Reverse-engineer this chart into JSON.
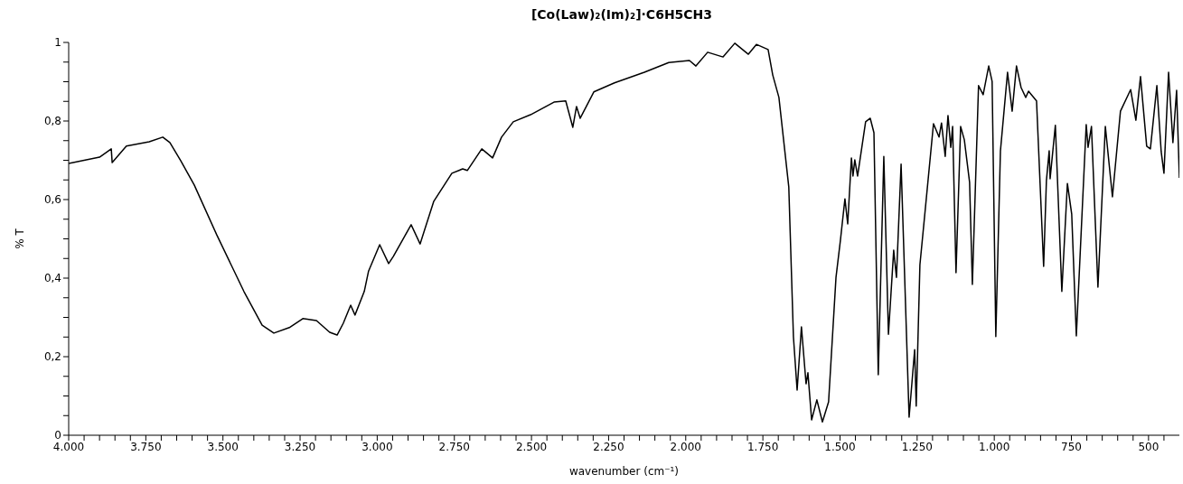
{
  "chart_data": {
    "type": "line",
    "title": "[Co(Law)₂(Im)₂]·C6H5CH3",
    "xlabel": "wavenumber (cm⁻¹)",
    "ylabel": "% T",
    "x": [
      4000,
      3900,
      3862,
      3859,
      3813,
      3739,
      3695,
      3672,
      3637,
      3593,
      3520,
      3432,
      3373,
      3335,
      3285,
      3241,
      3197,
      3154,
      3130,
      3110,
      3086,
      3072,
      3042,
      3028,
      2992,
      2963,
      2948,
      2890,
      2861,
      2817,
      2758,
      2723,
      2708,
      2661,
      2626,
      2597,
      2559,
      2503,
      2427,
      2389,
      2366,
      2354,
      2342,
      2298,
      2231,
      2134,
      2055,
      1988,
      1967,
      1929,
      1879,
      1841,
      1797,
      1771,
      1733,
      1718,
      1698,
      1666,
      1651,
      1639,
      1625,
      1610,
      1604,
      1592,
      1575,
      1557,
      1537,
      1513,
      1499,
      1484,
      1475,
      1463,
      1458,
      1452,
      1443,
      1417,
      1402,
      1390,
      1376,
      1358,
      1343,
      1326,
      1317,
      1302,
      1276,
      1258,
      1253,
      1241,
      1224,
      1197,
      1179,
      1171,
      1159,
      1150,
      1141,
      1135,
      1124,
      1109,
      1097,
      1080,
      1071,
      1051,
      1036,
      1018,
      1007,
      995,
      980,
      957,
      942,
      928,
      913,
      898,
      889,
      863,
      840,
      831,
      822,
      819,
      802,
      781,
      763,
      749,
      734,
      702,
      696,
      685,
      664,
      640,
      617,
      591,
      558,
      541,
      526,
      506,
      494,
      473,
      459,
      450,
      435,
      421,
      409,
      400
    ],
    "series": [
      {
        "color": "#000000",
        "values": [
          0.692,
          0.708,
          0.729,
          0.694,
          0.736,
          0.747,
          0.759,
          0.745,
          0.699,
          0.637,
          0.51,
          0.366,
          0.28,
          0.26,
          0.274,
          0.297,
          0.292,
          0.262,
          0.255,
          0.285,
          0.331,
          0.306,
          0.366,
          0.418,
          0.485,
          0.437,
          0.455,
          0.536,
          0.487,
          0.595,
          0.667,
          0.678,
          0.674,
          0.729,
          0.706,
          0.759,
          0.798,
          0.816,
          0.848,
          0.851,
          0.784,
          0.837,
          0.807,
          0.874,
          0.897,
          0.924,
          0.949,
          0.954,
          0.94,
          0.975,
          0.963,
          0.998,
          0.97,
          0.995,
          0.982,
          0.917,
          0.86,
          0.632,
          0.251,
          0.115,
          0.276,
          0.131,
          0.159,
          0.039,
          0.09,
          0.034,
          0.085,
          0.402,
          0.494,
          0.602,
          0.538,
          0.706,
          0.66,
          0.701,
          0.66,
          0.798,
          0.807,
          0.77,
          0.154,
          0.71,
          0.257,
          0.471,
          0.402,
          0.69,
          0.046,
          0.218,
          0.074,
          0.434,
          0.572,
          0.793,
          0.759,
          0.795,
          0.71,
          0.814,
          0.733,
          0.786,
          0.414,
          0.786,
          0.752,
          0.644,
          0.384,
          0.89,
          0.867,
          0.94,
          0.901,
          0.251,
          0.724,
          0.924,
          0.825,
          0.94,
          0.885,
          0.86,
          0.876,
          0.851,
          0.43,
          0.648,
          0.724,
          0.653,
          0.789,
          0.366,
          0.641,
          0.563,
          0.253,
          0.791,
          0.733,
          0.786,
          0.377,
          0.786,
          0.607,
          0.825,
          0.88,
          0.802,
          0.913,
          0.736,
          0.729,
          0.89,
          0.722,
          0.667,
          0.924,
          0.745,
          0.878,
          0.655
        ]
      }
    ],
    "xlim": [
      4000,
      400
    ],
    "xticks": [
      {
        "value": 4000,
        "label": "4.000"
      },
      {
        "value": 3950,
        "label": null
      },
      {
        "value": 3900,
        "label": null
      },
      {
        "value": 3850,
        "label": null
      },
      {
        "value": 3800,
        "label": null
      },
      {
        "value": 3750,
        "label": "3.750"
      },
      {
        "value": 3700,
        "label": null
      },
      {
        "value": 3650,
        "label": null
      },
      {
        "value": 3600,
        "label": null
      },
      {
        "value": 3550,
        "label": null
      },
      {
        "value": 3500,
        "label": "3.500"
      },
      {
        "value": 3450,
        "label": null
      },
      {
        "value": 3400,
        "label": null
      },
      {
        "value": 3350,
        "label": null
      },
      {
        "value": 3300,
        "label": null
      },
      {
        "value": 3250,
        "label": "3.250"
      },
      {
        "value": 3200,
        "label": null
      },
      {
        "value": 3150,
        "label": null
      },
      {
        "value": 3100,
        "label": null
      },
      {
        "value": 3050,
        "label": null
      },
      {
        "value": 3000,
        "label": "3.000"
      },
      {
        "value": 2950,
        "label": null
      },
      {
        "value": 2900,
        "label": null
      },
      {
        "value": 2850,
        "label": null
      },
      {
        "value": 2800,
        "label": null
      },
      {
        "value": 2750,
        "label": "2.750"
      },
      {
        "value": 2700,
        "label": null
      },
      {
        "value": 2650,
        "label": null
      },
      {
        "value": 2600,
        "label": null
      },
      {
        "value": 2550,
        "label": null
      },
      {
        "value": 2500,
        "label": "2.500"
      },
      {
        "value": 2450,
        "label": null
      },
      {
        "value": 2400,
        "label": null
      },
      {
        "value": 2350,
        "label": null
      },
      {
        "value": 2300,
        "label": null
      },
      {
        "value": 2250,
        "label": "2.250"
      },
      {
        "value": 2200,
        "label": null
      },
      {
        "value": 2150,
        "label": null
      },
      {
        "value": 2100,
        "label": null
      },
      {
        "value": 2050,
        "label": null
      },
      {
        "value": 2000,
        "label": "2.000"
      },
      {
        "value": 1950,
        "label": null
      },
      {
        "value": 1900,
        "label": null
      },
      {
        "value": 1850,
        "label": null
      },
      {
        "value": 1800,
        "label": null
      },
      {
        "value": 1750,
        "label": "1.750"
      },
      {
        "value": 1700,
        "label": null
      },
      {
        "value": 1650,
        "label": null
      },
      {
        "value": 1600,
        "label": null
      },
      {
        "value": 1550,
        "label": null
      },
      {
        "value": 1500,
        "label": "1.500"
      },
      {
        "value": 1450,
        "label": null
      },
      {
        "value": 1400,
        "label": null
      },
      {
        "value": 1350,
        "label": null
      },
      {
        "value": 1300,
        "label": null
      },
      {
        "value": 1250,
        "label": "1.250"
      },
      {
        "value": 1200,
        "label": null
      },
      {
        "value": 1150,
        "label": null
      },
      {
        "value": 1100,
        "label": null
      },
      {
        "value": 1050,
        "label": null
      },
      {
        "value": 1000,
        "label": "1.000"
      },
      {
        "value": 950,
        "label": null
      },
      {
        "value": 900,
        "label": null
      },
      {
        "value": 850,
        "label": null
      },
      {
        "value": 800,
        "label": null
      },
      750,
      {
        "value": 700,
        "label": null
      },
      {
        "value": 650,
        "label": null
      },
      {
        "value": 600,
        "label": null
      },
      {
        "value": 550,
        "label": null
      },
      500,
      {
        "value": 450,
        "label": null
      }
    ],
    "ylim": [
      0,
      1
    ],
    "yticks": [
      0,
      {
        "value": 0.05,
        "label": null
      },
      {
        "value": 0.1,
        "label": null
      },
      {
        "value": 0.15,
        "label": null
      },
      {
        "value": 0.2,
        "label": "0,2"
      },
      {
        "value": 0.25,
        "label": null
      },
      {
        "value": 0.3,
        "label": null
      },
      {
        "value": 0.35,
        "label": null
      },
      {
        "value": 0.4,
        "label": "0,4"
      },
      {
        "value": 0.45,
        "label": null
      },
      {
        "value": 0.5,
        "label": null
      },
      {
        "value": 0.55,
        "label": null
      },
      {
        "value": 0.6,
        "label": "0,6"
      },
      {
        "value": 0.65,
        "label": null
      },
      {
        "value": 0.7,
        "label": null
      },
      {
        "value": 0.75,
        "label": null
      },
      {
        "value": 0.8,
        "label": "0,8"
      },
      {
        "value": 0.85,
        "label": null
      },
      {
        "value": 0.9,
        "label": null
      },
      {
        "value": 0.95,
        "label": null
      },
      1
    ],
    "grid": false,
    "legend": false
  }
}
